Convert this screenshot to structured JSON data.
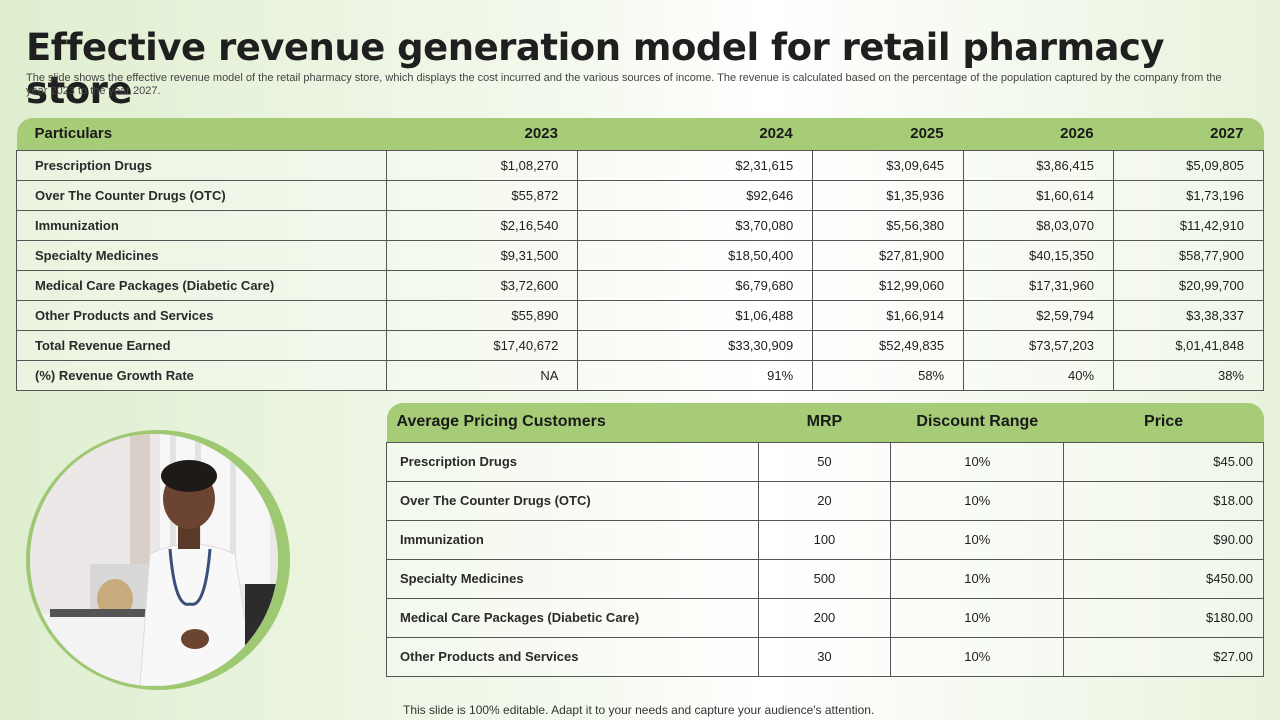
{
  "title": "Effective revenue generation model for retail pharmacy store",
  "subtitle": "The slide shows the effective revenue model of the retail pharmacy store, which displays the cost incurred and the various sources of income. The revenue is calculated based on the percentage of the population captured by the company from the year 2023 to the year 2027.",
  "revenue_table": {
    "headers": [
      "Particulars",
      "2023",
      "2024",
      "2025",
      "2026",
      "2027"
    ],
    "rows": [
      [
        "Prescription Drugs",
        "$1,08,270",
        "$2,31,615",
        "$3,09,645",
        "$3,86,415",
        "$5,09,805"
      ],
      [
        "Over The Counter Drugs (OTC)",
        "$55,872",
        "$92,646",
        "$1,35,936",
        "$1,60,614",
        "$1,73,196"
      ],
      [
        "Immunization",
        "$2,16,540",
        "$3,70,080",
        "$5,56,380",
        "$8,03,070",
        "$11,42,910"
      ],
      [
        "Specialty Medicines",
        "$9,31,500",
        "$18,50,400",
        "$27,81,900",
        "$40,15,350",
        "$58,77,900"
      ],
      [
        "Medical Care Packages (Diabetic Care)",
        "$3,72,600",
        "$6,79,680",
        "$12,99,060",
        "$17,31,960",
        "$20,99,700"
      ],
      [
        "Other Products  and Services",
        "$55,890",
        "$1,06,488",
        "$1,66,914",
        "$2,59,794",
        "$3,38,337"
      ],
      [
        "Total Revenue Earned",
        "$17,40,672",
        "$33,30,909",
        "$52,49,835",
        "$73,57,203",
        "$,01,41,848"
      ],
      [
        "(%)  Revenue Growth Rate",
        "NA",
        "91%",
        "58%",
        "40%",
        "38%"
      ]
    ]
  },
  "pricing_table": {
    "headers": [
      "Average Pricing Customers",
      "MRP",
      "Discount Range",
      "Price"
    ],
    "rows": [
      [
        "Prescription Drugs",
        "50",
        "10%",
        "$45.00"
      ],
      [
        "Over The Counter Drugs (OTC)",
        "20",
        "10%",
        "$18.00"
      ],
      [
        "Immunization",
        "100",
        "10%",
        "$90.00"
      ],
      [
        "Specialty Medicines",
        "500",
        "10%",
        "$450.00"
      ],
      [
        "Medical Care Packages (Diabetic Care)",
        "200",
        "10%",
        "$180.00"
      ],
      [
        "Other Products  and Services",
        "30",
        "10%",
        "$27.00"
      ]
    ]
  },
  "footer": "This slide is 100% editable. Adapt it to your needs and capture your audience's attention.",
  "colors": {
    "header_green": "#a6cc78",
    "ring_green": "#9fc873"
  }
}
